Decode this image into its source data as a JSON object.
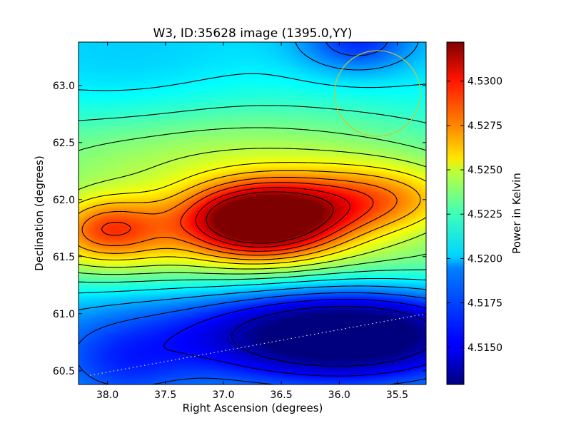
{
  "chart_data": {
    "type": "heatmap",
    "title": "W3, ID:35628 image (1395.0,YY)",
    "xlabel": "Right Ascension (degrees)",
    "ylabel": "Declination (degrees)",
    "colorbar_label": "Power in Kelvin",
    "colormap": "jet",
    "xlim": [
      38.25,
      35.25
    ],
    "ylim": [
      60.38,
      63.38
    ],
    "x_ticks": [
      38.0,
      37.5,
      37.0,
      36.5,
      36.0,
      35.5
    ],
    "x_tick_labels": [
      "38.0",
      "37.5",
      "37.0",
      "36.5",
      "36.0",
      "35.5"
    ],
    "y_ticks": [
      60.5,
      61.0,
      61.5,
      62.0,
      62.5,
      63.0
    ],
    "y_tick_labels": [
      "60.5",
      "61.0",
      "61.5",
      "62.0",
      "62.5",
      "63.0"
    ],
    "colorbar_range": [
      4.5129,
      4.5322
    ],
    "colorbar_ticks": [
      4.515,
      4.5175,
      4.52,
      4.5225,
      4.525,
      4.5275,
      4.53
    ],
    "colorbar_tick_labels": [
      "4.5150",
      "4.5175",
      "4.5200",
      "4.5225",
      "4.5250",
      "4.5275",
      "4.5300"
    ],
    "background_level": 4.5195,
    "features": [
      {
        "ra": 36.7,
        "dec": 61.82,
        "amplitude": 0.0125,
        "sigma_ra": 0.48,
        "sigma_dec": 0.22,
        "description": "peak"
      },
      {
        "ra": 38.0,
        "dec": 61.75,
        "amplitude": 0.0065,
        "sigma_ra": 0.38,
        "sigma_dec": 0.2
      },
      {
        "ra": 35.7,
        "dec": 61.98,
        "amplitude": 0.0055,
        "sigma_ra": 0.6,
        "sigma_dec": 0.22
      },
      {
        "ra": 37.0,
        "dec": 62.3,
        "amplitude": 0.0042,
        "sigma_ra": 1.8,
        "sigma_dec": 0.42
      },
      {
        "ra": 36.8,
        "dec": 61.45,
        "amplitude": 0.003,
        "sigma_ra": 2.5,
        "sigma_dec": 0.22
      },
      {
        "ra": 35.85,
        "dec": 60.83,
        "amplitude": -0.0058,
        "sigma_ra": 0.75,
        "sigma_dec": 0.28,
        "description": "minimum"
      },
      {
        "ra": 36.7,
        "dec": 60.8,
        "amplitude": -0.0035,
        "sigma_ra": 1.3,
        "sigma_dec": 0.32
      },
      {
        "ra": 37.9,
        "dec": 60.5,
        "amplitude": -0.0018,
        "sigma_ra": 0.4,
        "sigma_dec": 0.25
      },
      {
        "ra": 35.85,
        "dec": 63.4,
        "amplitude": -0.0035,
        "sigma_ra": 0.35,
        "sigma_dec": 0.2
      },
      {
        "ra": 37.8,
        "dec": 63.0,
        "amplitude": -0.0006,
        "sigma_ra": 0.6,
        "sigma_dec": 0.4
      }
    ],
    "contour_levels": [
      4.514,
      4.5155,
      4.517,
      4.5185,
      4.52,
      4.5213,
      4.5225,
      4.5237,
      4.525,
      4.5262,
      4.5275,
      4.5287,
      4.53,
      4.5312
    ],
    "overlays": {
      "circle": {
        "ra": 35.67,
        "dec": 62.93,
        "radius_deg": 0.37,
        "color": "#c8c832"
      },
      "dotted_line": {
        "points": [
          [
            38.15,
            60.46
          ],
          [
            35.25,
            61.0
          ]
        ],
        "color": "#d8d8d8"
      }
    }
  }
}
